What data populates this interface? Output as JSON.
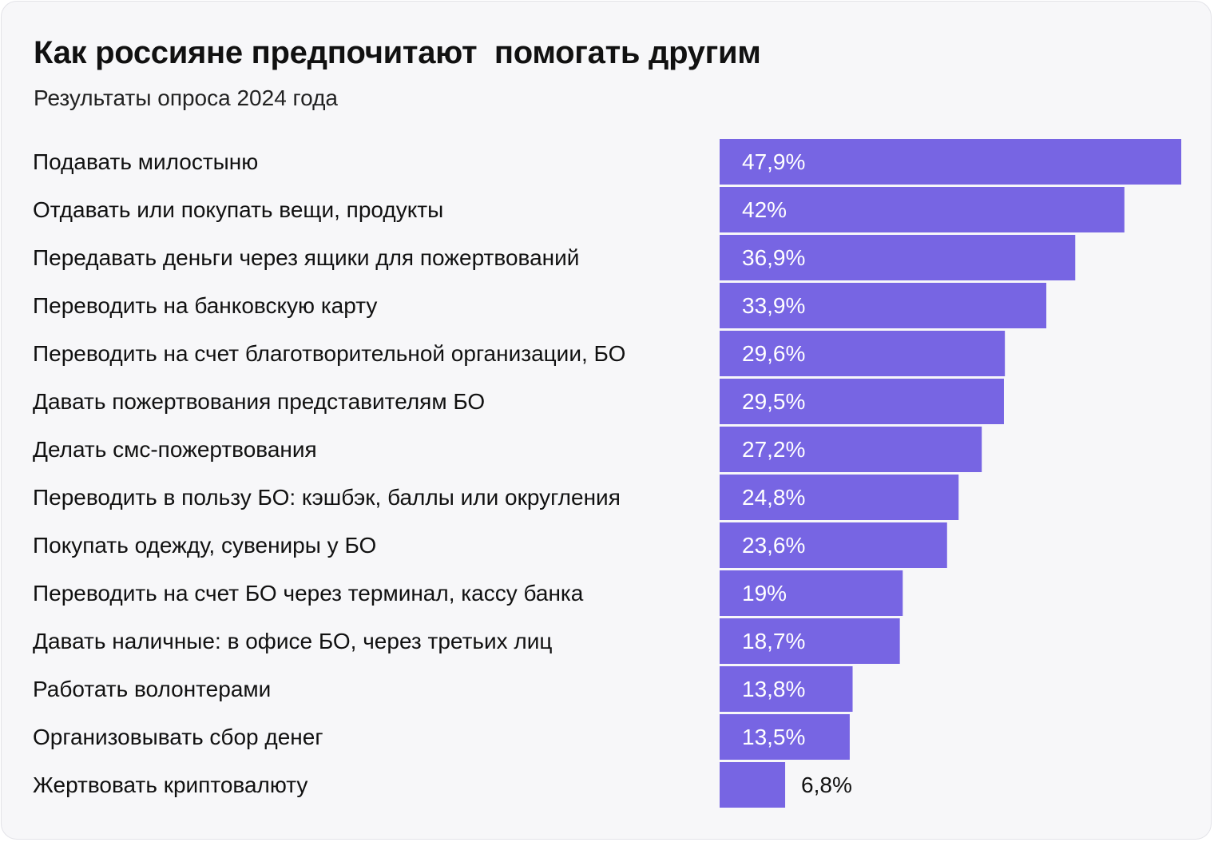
{
  "title": "Как россияне предпочитают  помогать другим",
  "subtitle": "Результаты опроса 2024 года",
  "colors": {
    "bar": "#7765e3",
    "background": "#f7f7f9",
    "text": "#111111"
  },
  "chart_data": {
    "type": "bar",
    "orientation": "horizontal",
    "title": "Как россияне предпочитают  помогать другим",
    "subtitle": "Результаты опроса 2024 года",
    "xlabel": "",
    "ylabel": "",
    "grid": false,
    "legend": "none",
    "xlim": [
      0,
      47.9
    ],
    "categories": [
      "Подавать милостыню",
      "Отдавать или покупать вещи, продукты",
      "Передавать деньги через ящики для пожертвований",
      "Переводить на банковскую карту",
      "Переводить на счет благотворительной организации, БО",
      "Давать пожертвования представителям БО",
      "Делать смс-пожертвования",
      "Переводить в пользу БО: кэшбэк, баллы или округления",
      "Покупать одежду, сувениры у БО",
      "Переводить на счет БО через терминал, кассу банка",
      "Давать наличные: в офисе БО, через третьих лиц",
      "Работать волонтерами",
      "Организовывать сбор денег",
      "Жертвовать криптовалюту"
    ],
    "values": [
      47.9,
      42,
      36.9,
      33.9,
      29.6,
      29.5,
      27.2,
      24.8,
      23.6,
      19,
      18.7,
      13.8,
      13.5,
      6.8
    ],
    "value_labels": [
      "47,9%",
      "42%",
      "36,9%",
      "33,9%",
      "29,6%",
      "29,5%",
      "27,2%",
      "24,8%",
      "23,6%",
      "19%",
      "18,7%",
      "13,8%",
      "13,5%",
      "6,8%"
    ]
  }
}
